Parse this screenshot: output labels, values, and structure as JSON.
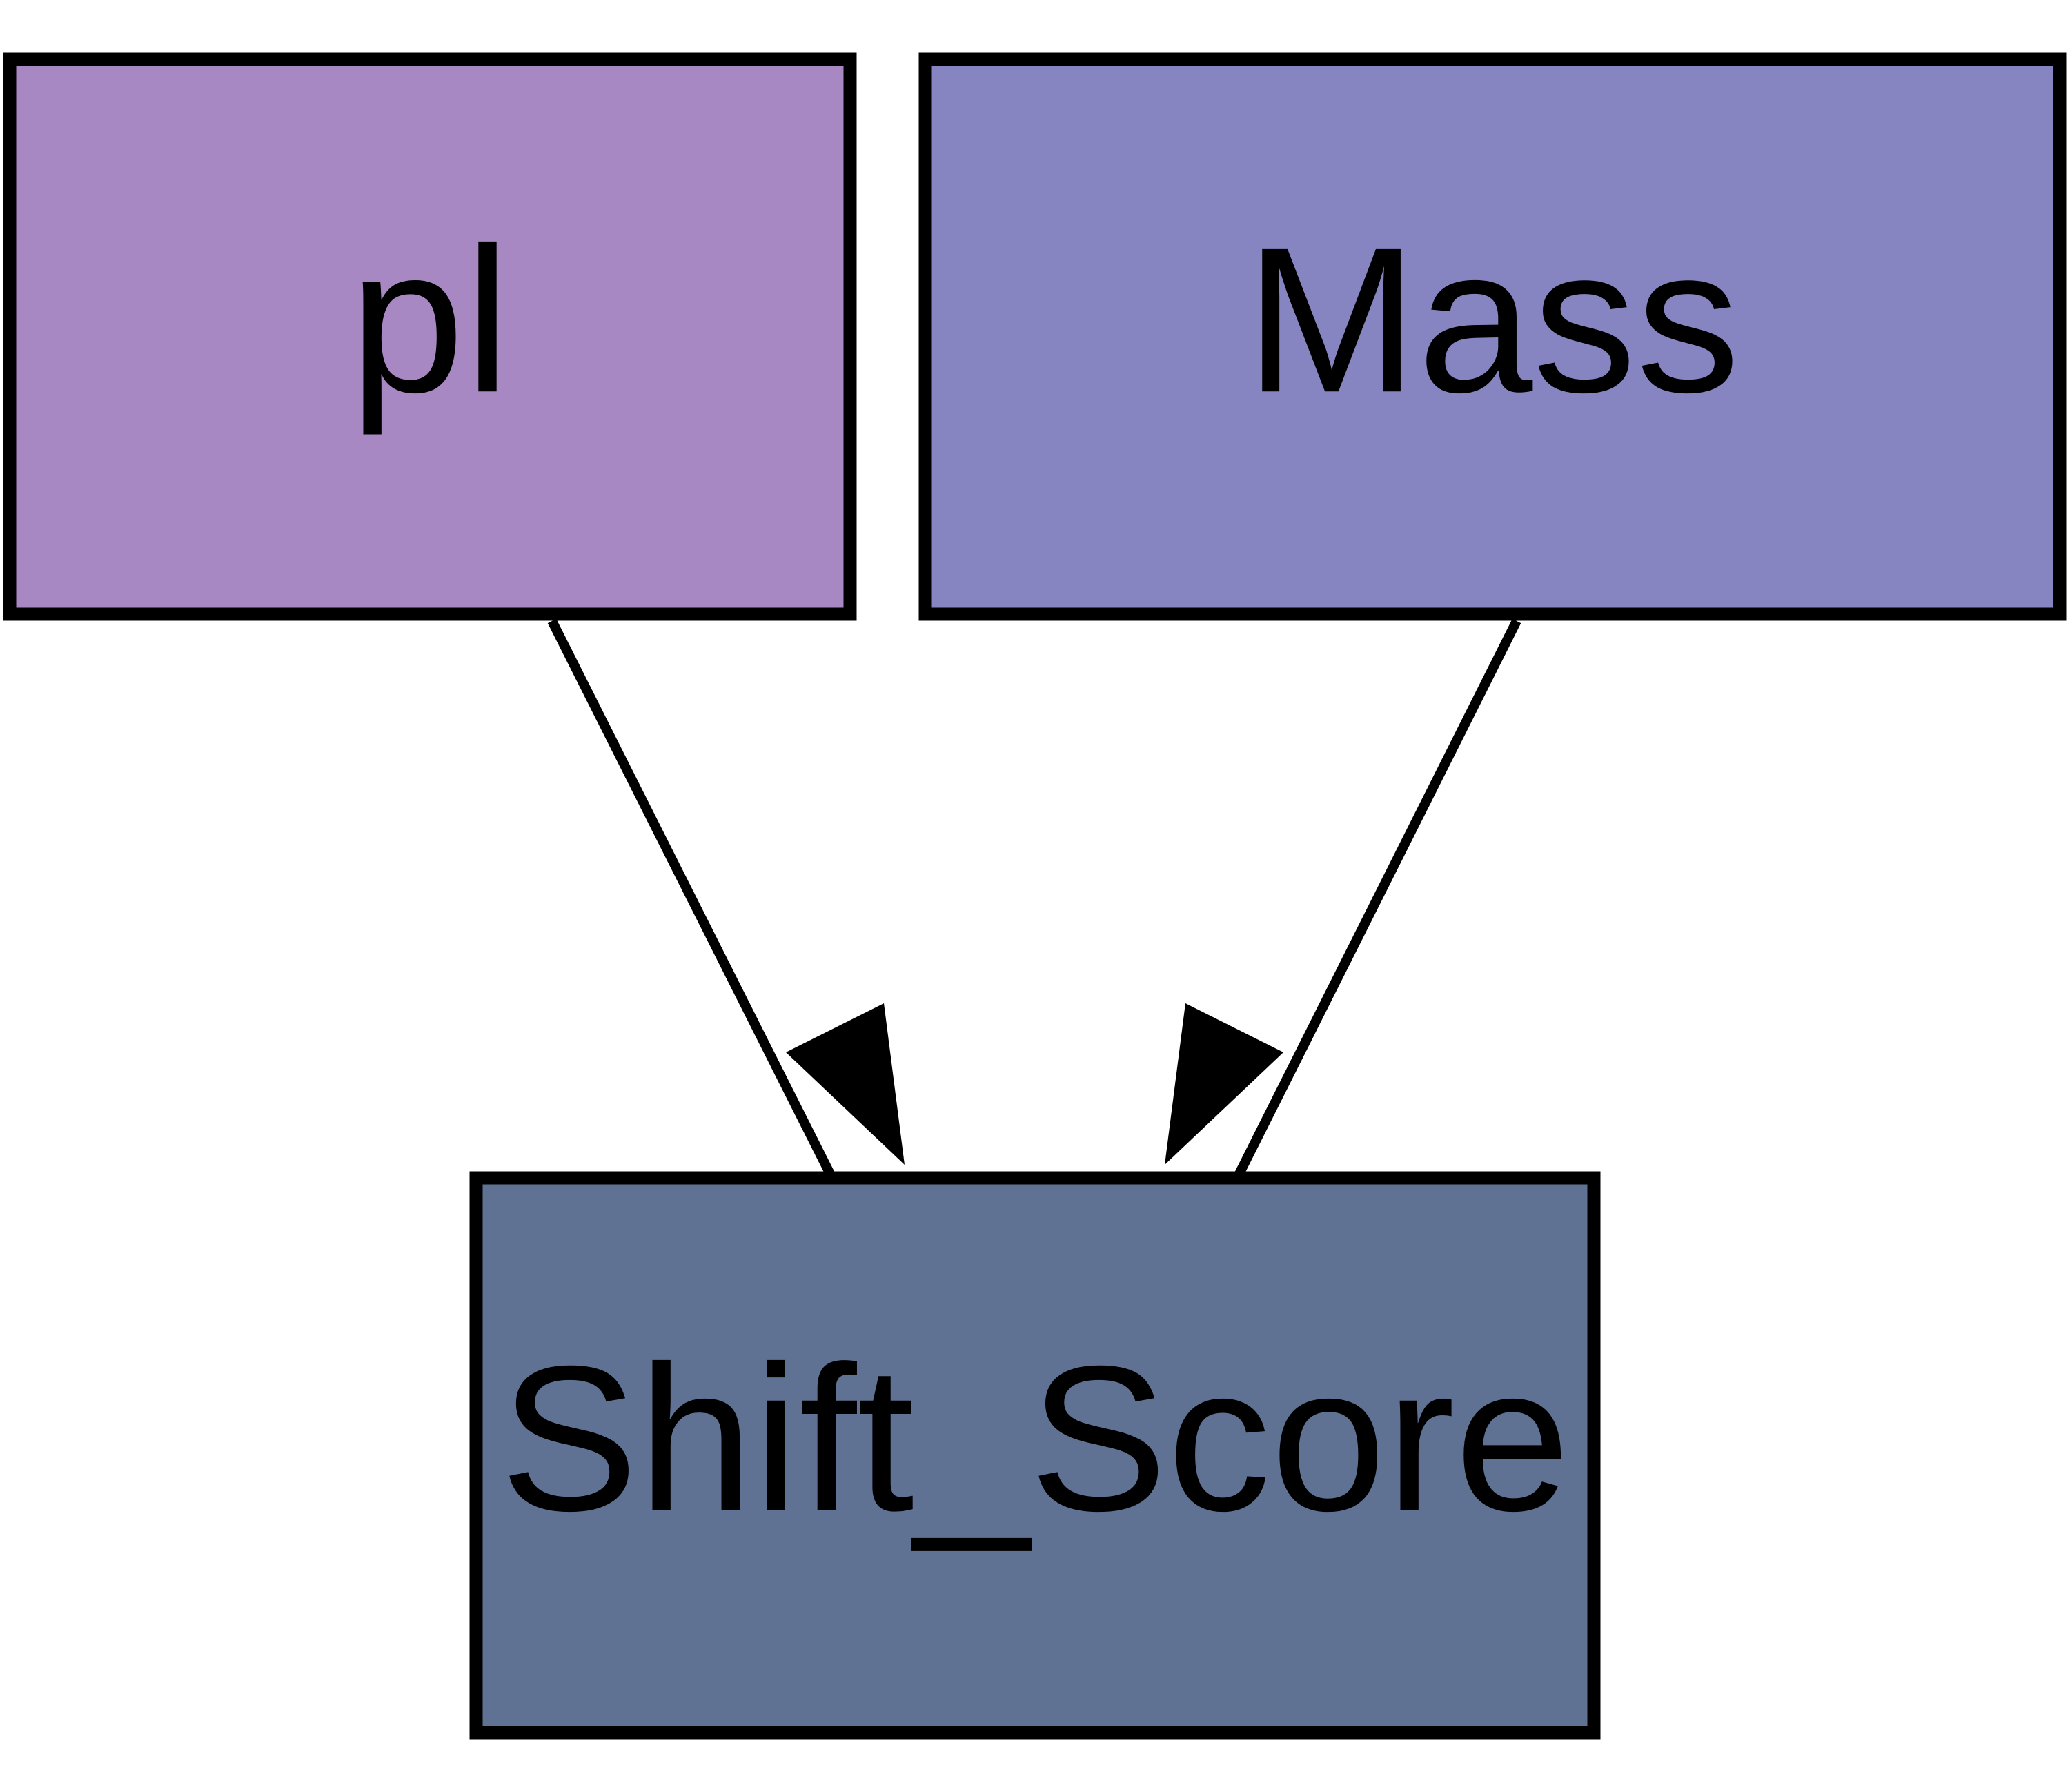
{
  "diagram": {
    "nodes": [
      {
        "id": "pl",
        "label": "pl",
        "fill": "#a888c2"
      },
      {
        "id": "mass",
        "label": "Mass",
        "fill": "#8685c2"
      },
      {
        "id": "shift_score",
        "label": "Shift_Score",
        "fill": "#607294"
      }
    ],
    "edges": [
      {
        "from": "pl",
        "to": "shift_score"
      },
      {
        "from": "mass",
        "to": "shift_score"
      }
    ],
    "colors": {
      "stroke": "#000000",
      "background": "#ffffff"
    }
  }
}
